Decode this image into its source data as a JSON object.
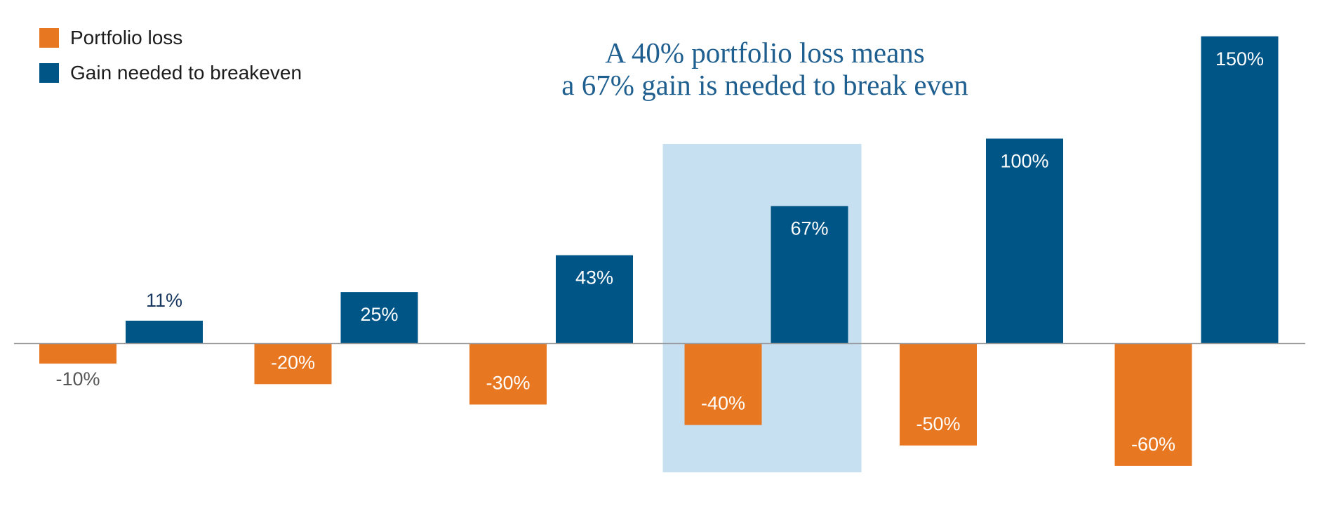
{
  "colors": {
    "loss": "#e87722",
    "gain": "#005587",
    "highlight": "#c6e0f2",
    "axis": "#9a9a9a",
    "outside_gain_label": "#17375e",
    "outside_loss_label": "#555555",
    "inside_label": "#ffffff"
  },
  "legend": {
    "loss_label": "Portfolio loss",
    "gain_label": "Gain needed to breakeven"
  },
  "callout": {
    "line1": "A 40% portfolio loss means",
    "line2": "a 67% gain is needed to break even"
  },
  "chart_data": {
    "type": "bar",
    "categories": [
      "",
      "",
      "",
      "",
      "",
      ""
    ],
    "series": [
      {
        "name": "Portfolio loss",
        "values": [
          -10,
          -20,
          -30,
          -40,
          -50,
          -60
        ],
        "labels": [
          "-10%",
          "-20%",
          "-30%",
          "-40%",
          "-50%",
          "-60%"
        ]
      },
      {
        "name": "Gain needed to breakeven",
        "values": [
          11,
          25,
          43,
          67,
          100,
          150
        ],
        "labels": [
          "11%",
          "25%",
          "43%",
          "67%",
          "100%",
          "150%"
        ]
      }
    ],
    "highlight_group": 3,
    "ylim": [
      -65,
      155
    ],
    "grid": false,
    "legend_position": "top-left"
  }
}
